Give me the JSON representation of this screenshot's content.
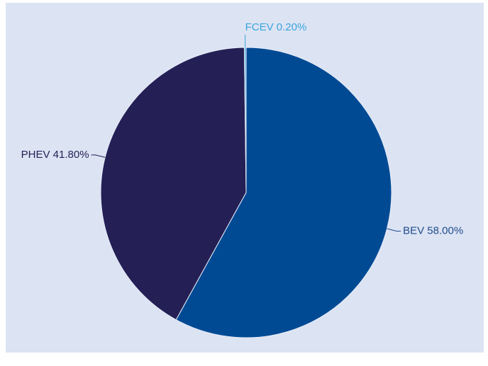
{
  "chart_data": {
    "type": "pie",
    "categories": [
      "BEV",
      "PHEV",
      "FCEV"
    ],
    "values": [
      58.0,
      41.8,
      0.2
    ],
    "value_labels": [
      "58.00%",
      "41.80%",
      "0.20%"
    ],
    "colors": [
      "#004a94",
      "#241f55",
      "#5ab4e0"
    ],
    "label_colors": [
      "#1f4e8c",
      "#241f55",
      "#3aa6dd"
    ]
  }
}
